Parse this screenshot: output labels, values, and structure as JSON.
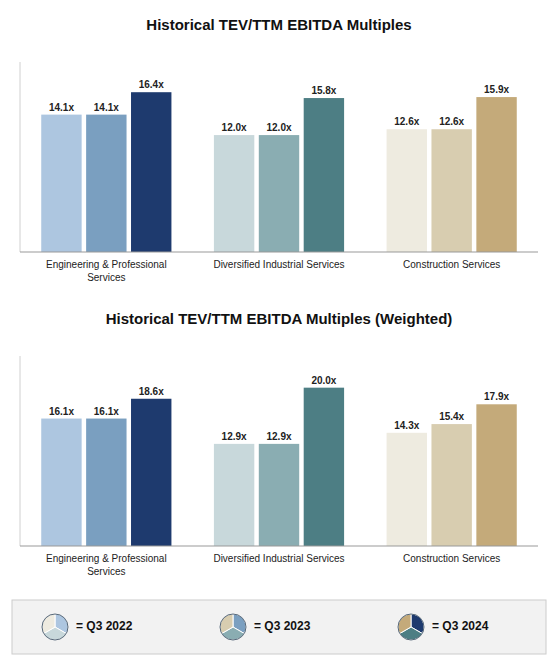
{
  "chart_data": [
    {
      "type": "bar",
      "title": "Historical TEV/TTM EBITDA Multiples",
      "categories": [
        "Engineering & Professional\nServices",
        "Diversified Industrial Services",
        "Construction Services"
      ],
      "series": [
        {
          "name": "= Q3 2022",
          "colors": [
            "#adc6e0",
            "#c8d8db",
            "#eeebe0"
          ],
          "values": [
            14.1,
            12.0,
            12.6
          ],
          "value_labels": [
            "14.1x",
            "12.0x",
            "12.6x"
          ]
        },
        {
          "name": "= Q3 2023",
          "colors": [
            "#7a9fc0",
            "#8aadb2",
            "#d8cdb0"
          ],
          "values": [
            14.1,
            12.0,
            12.6
          ],
          "value_labels": [
            "14.1x",
            "12.0x",
            "12.6x"
          ]
        },
        {
          "name": "= Q3 2024",
          "colors": [
            "#1e3a6e",
            "#4d7e84",
            "#c4aa7a"
          ],
          "values": [
            16.4,
            15.8,
            15.9
          ],
          "value_labels": [
            "16.4x",
            "15.8x",
            "15.9x"
          ]
        }
      ],
      "ylim": [
        0,
        19.5
      ],
      "data_labels": true,
      "tick_labels": false,
      "grid": false
    },
    {
      "type": "bar",
      "title": "Historical TEV/TTM EBITDA Multiples (Weighted)",
      "categories": [
        "Engineering & Professional\nServices",
        "Diversified Industrial Services",
        "Construction Services"
      ],
      "series": [
        {
          "name": "= Q3 2022",
          "colors": [
            "#adc6e0",
            "#c8d8db",
            "#eeebe0"
          ],
          "values": [
            16.1,
            12.9,
            14.3
          ],
          "value_labels": [
            "16.1x",
            "12.9x",
            "14.3x"
          ]
        },
        {
          "name": "= Q3 2023",
          "colors": [
            "#7a9fc0",
            "#8aadb2",
            "#d8cdb0"
          ],
          "values": [
            16.1,
            12.9,
            15.4
          ],
          "value_labels": [
            "16.1x",
            "12.9x",
            "15.4x"
          ]
        },
        {
          "name": "= Q3 2024",
          "colors": [
            "#1e3a6e",
            "#4d7e84",
            "#c4aa7a"
          ],
          "values": [
            18.6,
            20.0,
            17.9
          ],
          "value_labels": [
            "18.6x",
            "20.0x",
            "17.9x"
          ]
        }
      ],
      "ylim": [
        0,
        24.0
      ],
      "data_labels": true,
      "tick_labels": false,
      "grid": false,
      "legend": "bottom"
    }
  ]
}
